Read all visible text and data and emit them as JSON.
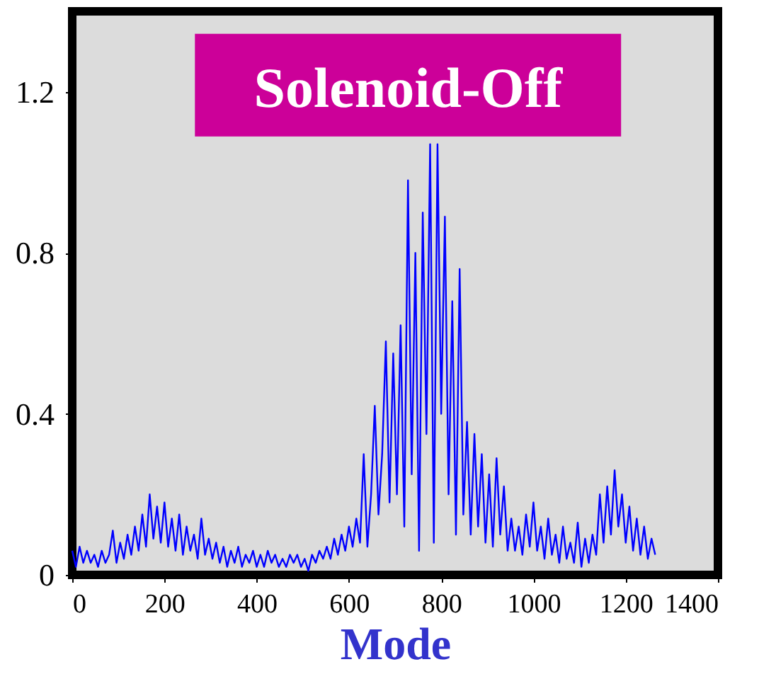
{
  "chart_data": {
    "type": "line",
    "xlabel": "Mode",
    "annotations": [
      "Solenoid-Off"
    ],
    "xlim": [
      0,
      1400
    ],
    "xticks": [
      0,
      200,
      400,
      600,
      800,
      1000,
      1200,
      1400
    ],
    "ylim": [
      0,
      1.4
    ],
    "yticks": [
      0,
      0.4,
      0.8,
      1.2
    ],
    "grid": false,
    "legend": false,
    "marker": "none",
    "line_style": "solid",
    "x": [
      0,
      8,
      16,
      24,
      32,
      40,
      48,
      56,
      64,
      72,
      80,
      88,
      96,
      104,
      112,
      120,
      128,
      136,
      144,
      152,
      160,
      168,
      176,
      184,
      192,
      200,
      208,
      216,
      224,
      232,
      240,
      248,
      256,
      264,
      272,
      280,
      288,
      296,
      304,
      312,
      320,
      328,
      336,
      344,
      352,
      360,
      368,
      376,
      384,
      392,
      400,
      408,
      416,
      424,
      432,
      440,
      448,
      456,
      464,
      472,
      480,
      488,
      496,
      504,
      512,
      520,
      528,
      536,
      544,
      552,
      560,
      568,
      576,
      584,
      592,
      600,
      608,
      616,
      624,
      632,
      640,
      648,
      656,
      664,
      672,
      680,
      688,
      696,
      704,
      712,
      720,
      728,
      736,
      744,
      752,
      760,
      768,
      776,
      784,
      792,
      800,
      808,
      816,
      824,
      832,
      840,
      848,
      856,
      864,
      872,
      880,
      888,
      896,
      904,
      912,
      920,
      928,
      936,
      944,
      952,
      960,
      968,
      976,
      984,
      992,
      1000,
      1008,
      1016,
      1024,
      1032,
      1040,
      1048,
      1056,
      1064,
      1072,
      1080,
      1088,
      1096,
      1104,
      1112,
      1120,
      1128,
      1136,
      1144,
      1152,
      1160,
      1168,
      1176,
      1184,
      1192,
      1200,
      1208,
      1216,
      1224,
      1232,
      1240,
      1248,
      1256,
      1264
    ],
    "series": [
      {
        "color": "#0000ff",
        "values": [
          0.06,
          0.02,
          0.07,
          0.03,
          0.06,
          0.03,
          0.05,
          0.02,
          0.06,
          0.03,
          0.05,
          0.11,
          0.03,
          0.08,
          0.04,
          0.1,
          0.05,
          0.12,
          0.06,
          0.15,
          0.07,
          0.2,
          0.09,
          0.17,
          0.08,
          0.18,
          0.07,
          0.14,
          0.06,
          0.15,
          0.05,
          0.12,
          0.06,
          0.1,
          0.04,
          0.14,
          0.05,
          0.09,
          0.04,
          0.08,
          0.03,
          0.07,
          0.02,
          0.06,
          0.03,
          0.07,
          0.02,
          0.05,
          0.03,
          0.06,
          0.02,
          0.05,
          0.02,
          0.06,
          0.03,
          0.05,
          0.02,
          0.04,
          0.02,
          0.05,
          0.03,
          0.05,
          0.02,
          0.04,
          0.01,
          0.05,
          0.03,
          0.06,
          0.04,
          0.07,
          0.04,
          0.09,
          0.05,
          0.1,
          0.06,
          0.12,
          0.07,
          0.14,
          0.08,
          0.3,
          0.07,
          0.2,
          0.42,
          0.15,
          0.3,
          0.58,
          0.18,
          0.55,
          0.2,
          0.62,
          0.12,
          0.98,
          0.25,
          0.8,
          0.06,
          0.9,
          0.35,
          1.07,
          0.08,
          1.07,
          0.4,
          0.89,
          0.2,
          0.68,
          0.1,
          0.76,
          0.15,
          0.38,
          0.1,
          0.35,
          0.12,
          0.3,
          0.08,
          0.25,
          0.07,
          0.29,
          0.1,
          0.22,
          0.06,
          0.14,
          0.06,
          0.12,
          0.05,
          0.15,
          0.07,
          0.18,
          0.06,
          0.12,
          0.04,
          0.14,
          0.05,
          0.1,
          0.03,
          0.12,
          0.04,
          0.08,
          0.03,
          0.13,
          0.02,
          0.09,
          0.03,
          0.1,
          0.05,
          0.2,
          0.08,
          0.22,
          0.1,
          0.26,
          0.12,
          0.2,
          0.08,
          0.17,
          0.06,
          0.14,
          0.05,
          0.12,
          0.04,
          0.09,
          0.05
        ]
      }
    ]
  }
}
